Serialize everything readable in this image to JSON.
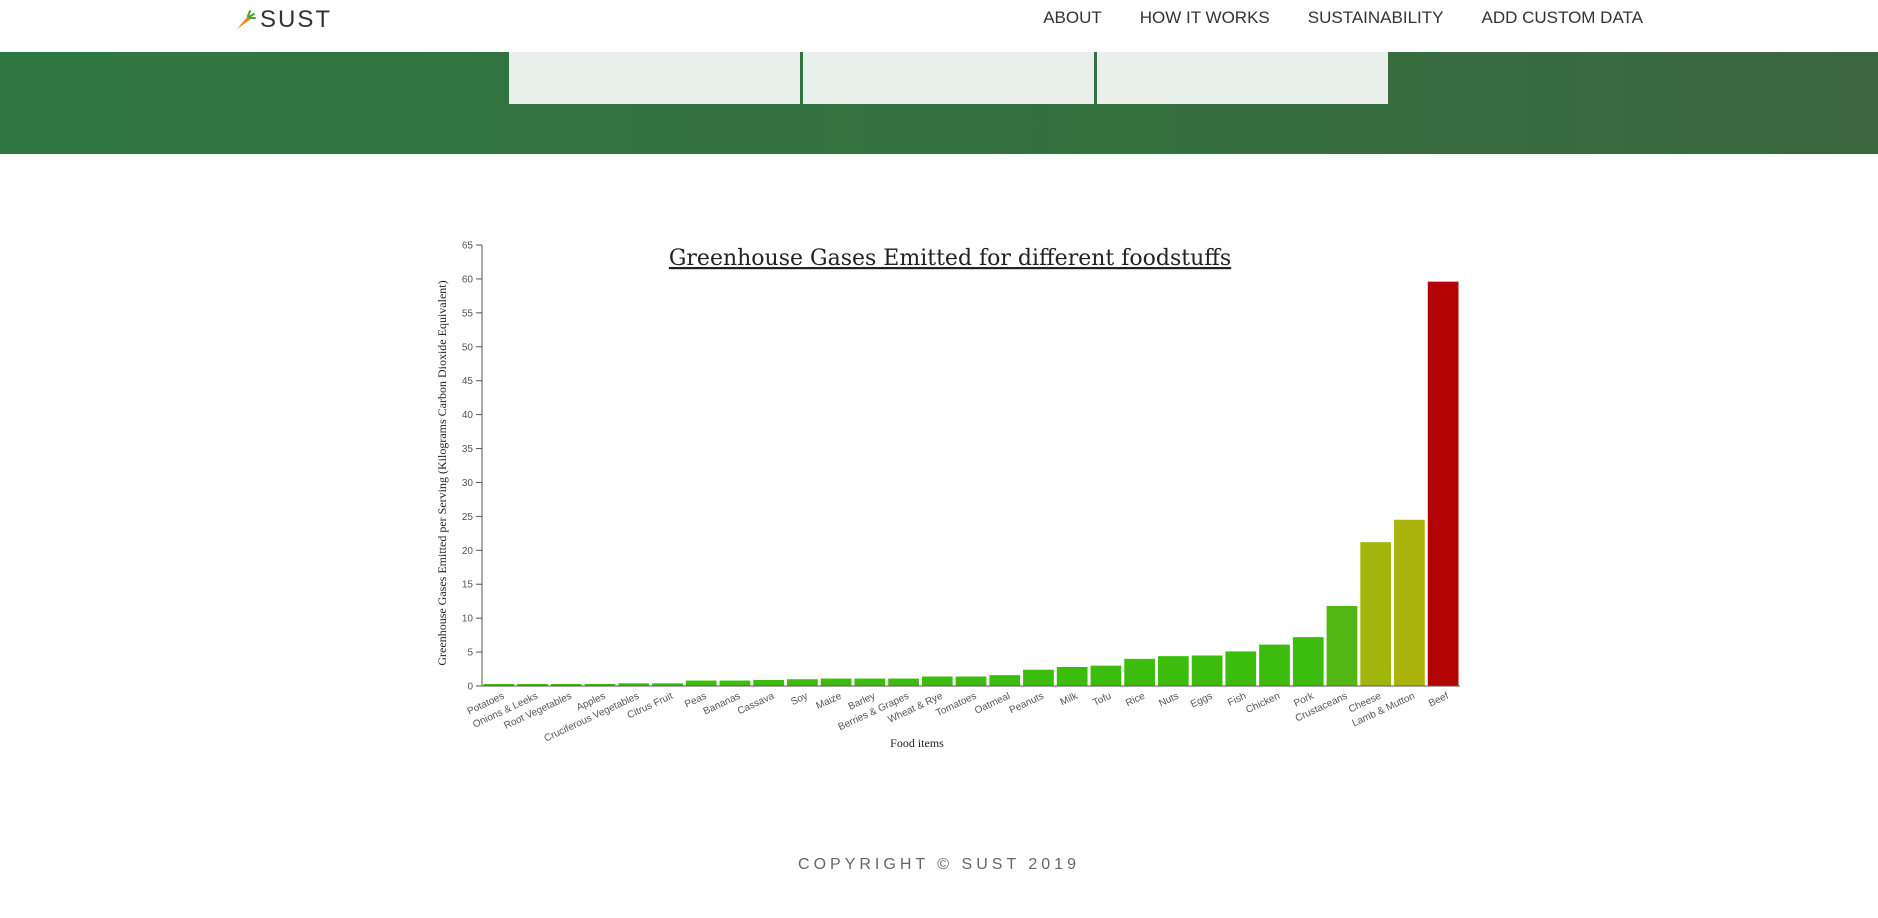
{
  "navbar": {
    "brand": "SUST",
    "brand_icon": "carrot-icon",
    "links": [
      {
        "label": "ABOUT"
      },
      {
        "label": "HOW IT WORKS"
      },
      {
        "label": "SUSTAINABILITY"
      },
      {
        "label": "ADD CUSTOM DATA"
      }
    ]
  },
  "colors": {
    "hero_green": "#2f7643",
    "bar_green": "#3cbd0d",
    "bar_mid": "#52b614",
    "bar_yellow": "#aab40a",
    "bar_red": "#b30303"
  },
  "chart_data": {
    "type": "bar",
    "title": "Greenhouse Gases Emitted for different foodstuffs",
    "xlabel": "Food items",
    "ylabel": "Greenhouse Gases Emitted per Serving (Kilograms Carbon Dioxide Equivalent)",
    "ylim": [
      0,
      65
    ],
    "yticks": [
      0,
      5,
      10,
      15,
      20,
      25,
      30,
      35,
      40,
      45,
      50,
      55,
      60,
      65
    ],
    "categories": [
      "Potatoes",
      "Onions & Leeks",
      "Root Vegetables",
      "Apples",
      "Cruciferous Vegetables",
      "Citrus Fruit",
      "Peas",
      "Bananas",
      "Cassava",
      "Soy",
      "Maize",
      "Barley",
      "Berries & Grapes",
      "Wheat & Rye",
      "Tomatoes",
      "Oatmeal",
      "Peanuts",
      "Milk",
      "Tofu",
      "Rice",
      "Nuts",
      "Eggs",
      "Fish",
      "Chicken",
      "Pork",
      "Crustaceans",
      "Cheese",
      "Lamb & Mutton",
      "Beef"
    ],
    "values": [
      0.3,
      0.3,
      0.3,
      0.3,
      0.4,
      0.4,
      0.8,
      0.8,
      0.9,
      1.0,
      1.1,
      1.1,
      1.1,
      1.4,
      1.4,
      1.6,
      2.4,
      2.8,
      3.0,
      4.0,
      4.4,
      4.5,
      5.1,
      6.1,
      7.2,
      11.8,
      21.2,
      24.5,
      59.6
    ],
    "bar_colors": [
      "#3cbd0d",
      "#3cbd0d",
      "#3cbd0d",
      "#3cbd0d",
      "#3cbd0d",
      "#3cbd0d",
      "#3cbd0d",
      "#3cbd0d",
      "#3cbd0d",
      "#3cbd0d",
      "#3cbd0d",
      "#3cbd0d",
      "#3cbd0d",
      "#3cbd0d",
      "#3cbd0d",
      "#3cbd0d",
      "#3cbd0d",
      "#3cbd0d",
      "#3cbd0d",
      "#3cbd0d",
      "#3cbd0d",
      "#3cbd0d",
      "#3cbd0d",
      "#3cbd0d",
      "#3cbd0d",
      "#52b614",
      "#a0b60a",
      "#aab40a",
      "#b30303"
    ]
  },
  "footer": {
    "copyright": "COPYRIGHT © SUST 2019"
  }
}
